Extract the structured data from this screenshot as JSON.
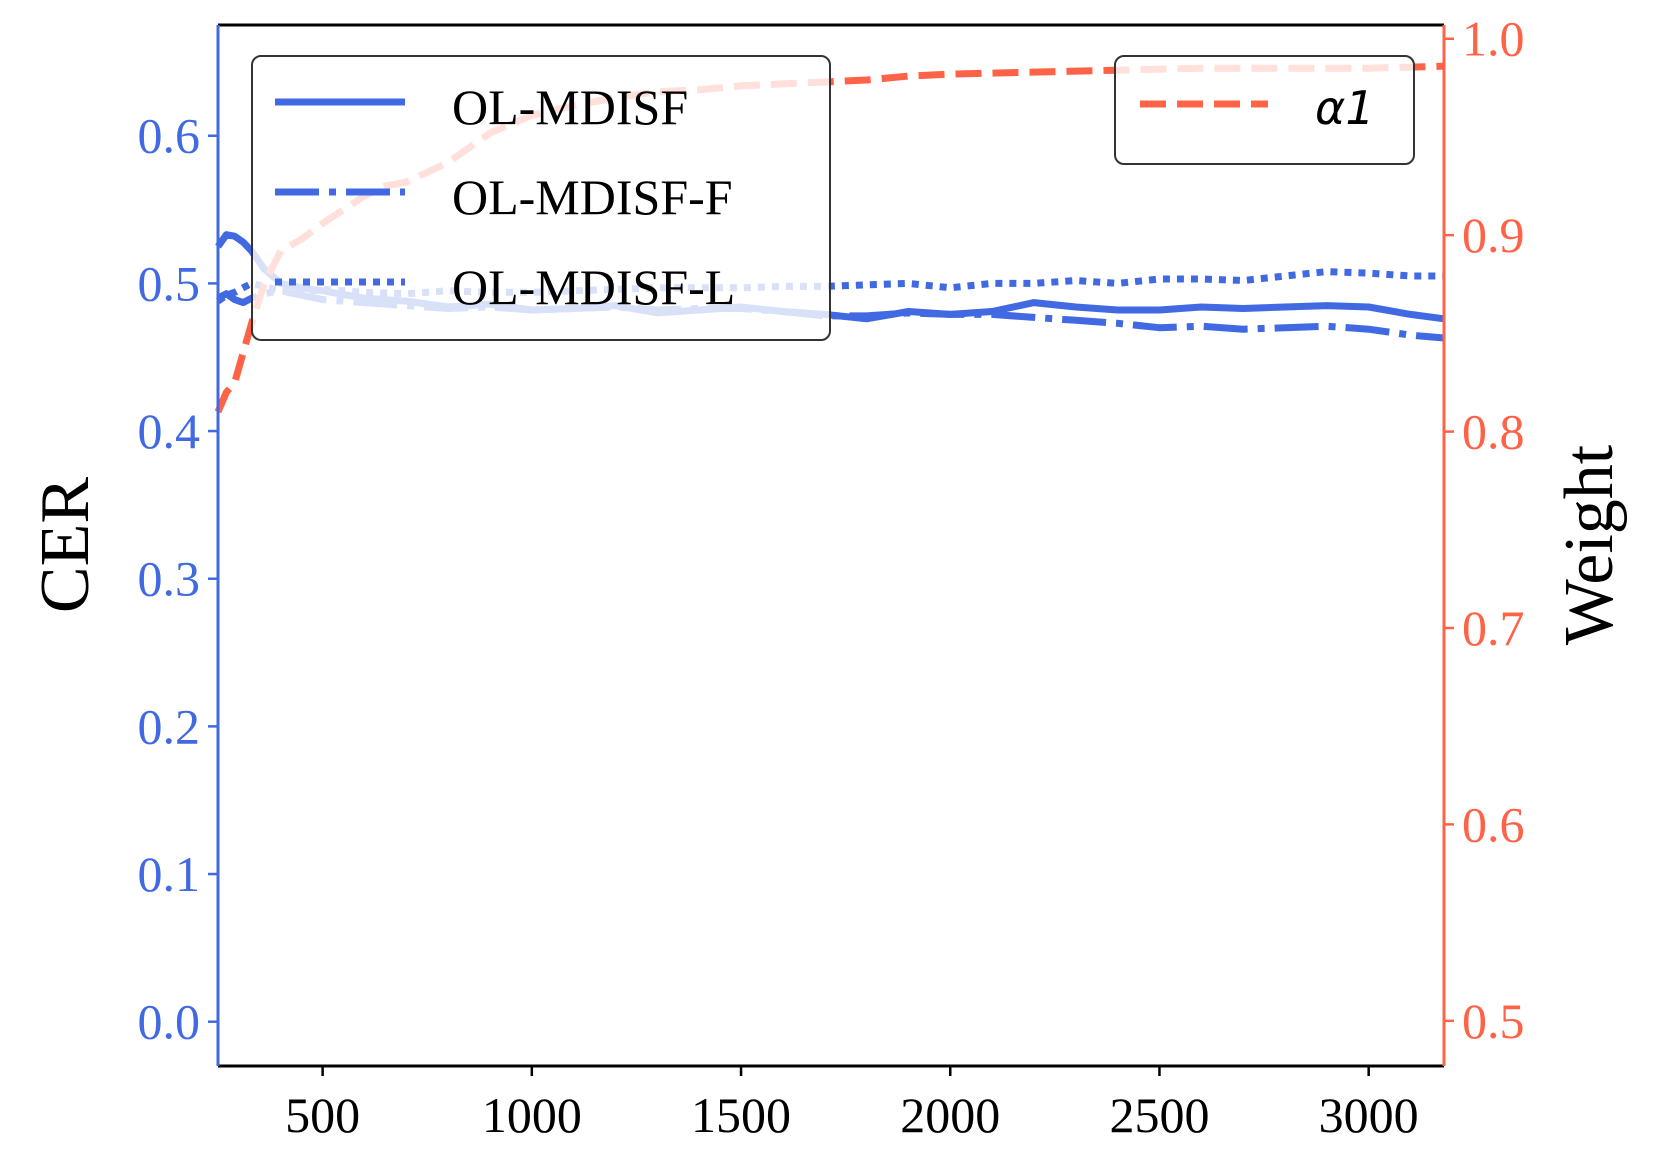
{
  "chart_data": {
    "type": "line",
    "xlim": [
      250,
      3180
    ],
    "x_ticks": [
      500,
      1000,
      1500,
      2000,
      2500,
      3000
    ],
    "x_tick_labels": [
      "500",
      "1000",
      "1500",
      "2000",
      "2500",
      "3000"
    ],
    "left_axis": {
      "label": "CER",
      "ylim": [
        -0.03,
        0.675
      ],
      "ticks": [
        0.0,
        0.1,
        0.2,
        0.3,
        0.4,
        0.5,
        0.6
      ],
      "tick_labels": [
        "0.0",
        "0.1",
        "0.2",
        "0.3",
        "0.4",
        "0.5",
        "0.6"
      ]
    },
    "right_axis": {
      "label": "Weight",
      "ylim": [
        0.477,
        1.007
      ],
      "ticks": [
        0.5,
        0.6,
        0.7,
        0.8,
        0.9,
        1.0
      ],
      "tick_labels": [
        "0.5",
        "0.6",
        "0.7",
        "0.8",
        "0.9",
        "1.0"
      ]
    },
    "series": [
      {
        "name": "OL-MDISF",
        "axis": "left",
        "style": "solid",
        "x": [
          250,
          270,
          290,
          310,
          330,
          360,
          400,
          450,
          500,
          600,
          700,
          800,
          900,
          1000,
          1100,
          1200,
          1300,
          1400,
          1500,
          1600,
          1700,
          1800,
          1900,
          2000,
          2100,
          2200,
          2300,
          2400,
          2500,
          2600,
          2700,
          2800,
          2900,
          3000,
          3100,
          3180
        ],
        "values": [
          0.525,
          0.533,
          0.532,
          0.528,
          0.522,
          0.51,
          0.5,
          0.497,
          0.495,
          0.49,
          0.488,
          0.484,
          0.486,
          0.482,
          0.483,
          0.485,
          0.48,
          0.482,
          0.484,
          0.481,
          0.479,
          0.476,
          0.481,
          0.479,
          0.481,
          0.487,
          0.484,
          0.482,
          0.482,
          0.484,
          0.483,
          0.484,
          0.485,
          0.484,
          0.479,
          0.476
        ]
      },
      {
        "name": "OL-MDISF-F",
        "axis": "left",
        "style": "dashdot",
        "x": [
          250,
          270,
          290,
          310,
          330,
          360,
          400,
          450,
          500,
          600,
          700,
          800,
          900,
          1000,
          1100,
          1200,
          1300,
          1400,
          1500,
          1600,
          1700,
          1800,
          1900,
          2000,
          2100,
          2200,
          2300,
          2400,
          2500,
          2600,
          2700,
          2800,
          2900,
          3000,
          3100,
          3180
        ],
        "values": [
          0.49,
          0.493,
          0.489,
          0.487,
          0.49,
          0.493,
          0.495,
          0.492,
          0.489,
          0.487,
          0.485,
          0.483,
          0.484,
          0.482,
          0.483,
          0.484,
          0.482,
          0.483,
          0.483,
          0.481,
          0.478,
          0.478,
          0.48,
          0.479,
          0.479,
          0.477,
          0.475,
          0.473,
          0.47,
          0.471,
          0.469,
          0.47,
          0.471,
          0.469,
          0.465,
          0.463
        ]
      },
      {
        "name": "OL-MDISF-L",
        "axis": "left",
        "style": "dotted",
        "x": [
          250,
          270,
          290,
          310,
          330,
          360,
          400,
          450,
          500,
          600,
          700,
          800,
          900,
          1000,
          1100,
          1200,
          1300,
          1400,
          1500,
          1600,
          1700,
          1800,
          1900,
          2000,
          2100,
          2200,
          2300,
          2400,
          2500,
          2600,
          2700,
          2800,
          2900,
          3000,
          3100,
          3180
        ],
        "values": [
          0.488,
          0.492,
          0.494,
          0.497,
          0.5,
          0.498,
          0.495,
          0.494,
          0.496,
          0.494,
          0.493,
          0.495,
          0.494,
          0.494,
          0.495,
          0.496,
          0.497,
          0.497,
          0.497,
          0.498,
          0.498,
          0.499,
          0.5,
          0.497,
          0.5,
          0.5,
          0.502,
          0.5,
          0.503,
          0.503,
          0.502,
          0.505,
          0.508,
          0.507,
          0.505,
          0.505
        ]
      },
      {
        "name": "α1",
        "axis": "right",
        "style": "dashed",
        "x": [
          250,
          270,
          290,
          310,
          330,
          360,
          400,
          450,
          500,
          550,
          600,
          650,
          700,
          800,
          900,
          1000,
          1100,
          1200,
          1300,
          1400,
          1500,
          1600,
          1700,
          1800,
          1900,
          2000,
          2200,
          2400,
          2600,
          2800,
          3000,
          3180
        ],
        "values": [
          0.81,
          0.82,
          0.825,
          0.84,
          0.855,
          0.875,
          0.892,
          0.898,
          0.906,
          0.913,
          0.92,
          0.925,
          0.927,
          0.937,
          0.952,
          0.961,
          0.966,
          0.97,
          0.973,
          0.974,
          0.976,
          0.977,
          0.978,
          0.979,
          0.981,
          0.982,
          0.983,
          0.984,
          0.985,
          0.985,
          0.985,
          0.986
        ]
      }
    ],
    "legends": [
      {
        "location": "upper-left",
        "entries": [
          "OL-MDISF",
          "OL-MDISF-F",
          "OL-MDISF-L"
        ]
      },
      {
        "location": "upper-right",
        "entries": [
          "α1"
        ]
      }
    ],
    "colors": {
      "left": "#4169e1",
      "right": "#ff6347"
    }
  }
}
